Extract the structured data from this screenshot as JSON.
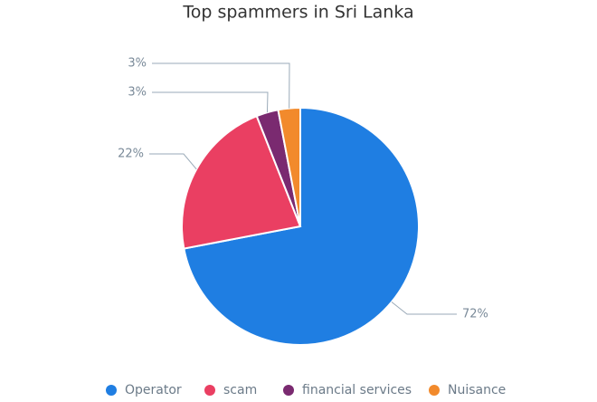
{
  "chart_data": {
    "type": "pie",
    "title": "Top spammers in Sri Lanka",
    "categories": [
      "Operator",
      "scam",
      "financial services",
      "Nuisance"
    ],
    "values": [
      72,
      22,
      3,
      3
    ],
    "value_labels": [
      "72%",
      "22%",
      "3%",
      "3%"
    ],
    "colors": [
      "#1f7ee2",
      "#ea3f62",
      "#7a2a70",
      "#f28a2c"
    ]
  }
}
